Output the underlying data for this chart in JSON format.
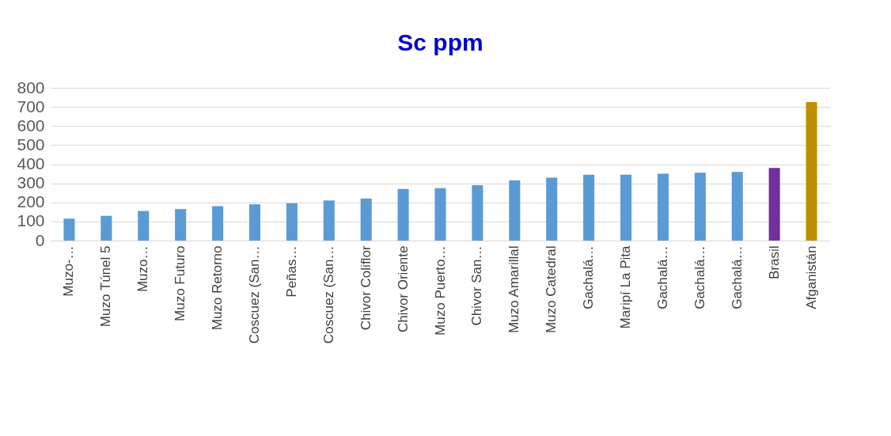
{
  "chart_data": {
    "type": "bar",
    "title": "Sc ppm",
    "categories": [
      "Muzo-…",
      "Muzo Túnel 5",
      "Muzo…",
      "Muzo Futuro",
      "Muzo Retorno",
      "Coscuez (San…",
      "Peñas…",
      "Coscuez (San…",
      "Chivor Coliflor",
      "Chivor Oriente",
      "Muzo Puerto…",
      "Chivor San…",
      "Muzo Amarillal",
      "Muzo Catedral",
      "Gachalá…",
      "Maripí La Pita",
      "Gachalá…",
      "Gachalá…",
      "Gachalá…",
      "Brasil",
      "Afganistán"
    ],
    "values": [
      115,
      130,
      155,
      165,
      180,
      190,
      195,
      210,
      220,
      270,
      275,
      290,
      315,
      330,
      345,
      345,
      350,
      355,
      360,
      380,
      725
    ],
    "colors": [
      "#5b9bd5",
      "#5b9bd5",
      "#5b9bd5",
      "#5b9bd5",
      "#5b9bd5",
      "#5b9bd5",
      "#5b9bd5",
      "#5b9bd5",
      "#5b9bd5",
      "#5b9bd5",
      "#5b9bd5",
      "#5b9bd5",
      "#5b9bd5",
      "#5b9bd5",
      "#5b9bd5",
      "#5b9bd5",
      "#5b9bd5",
      "#5b9bd5",
      "#5b9bd5",
      "#7030a0",
      "#bf9000"
    ],
    "ylim": [
      0,
      800
    ],
    "yticks": [
      0,
      100,
      200,
      300,
      400,
      500,
      600,
      700,
      800
    ],
    "grid": "y"
  }
}
